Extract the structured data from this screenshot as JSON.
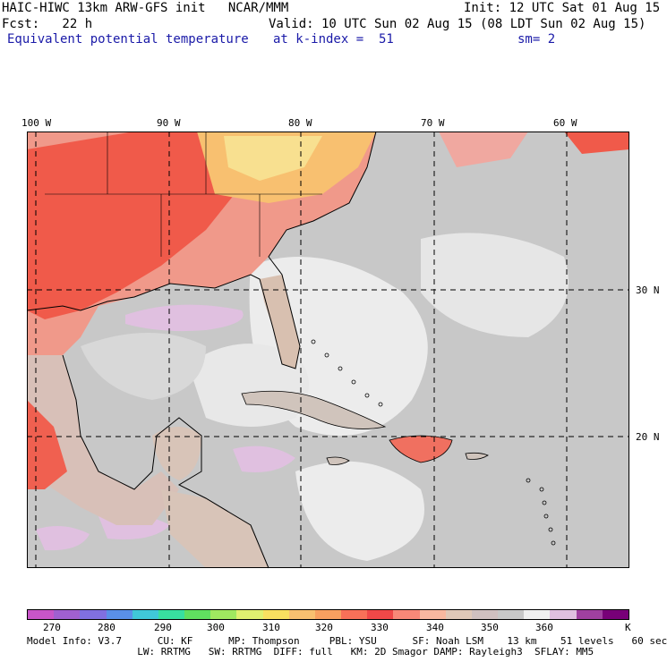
{
  "header": {
    "line1_left": "HAIC-HIWC 13km ARW-GFS init   NCAR/MMM",
    "line1_right": "Init: 12 UTC Sat 01 Aug 15",
    "line2_left": "Fcst:   22 h",
    "line2_right": "Valid: 10 UTC Sun 02 Aug 15 (08 LDT Sun 02 Aug 15)",
    "line3_field": "Equivalent potential temperature",
    "line3_index": "at k-index =  51",
    "line3_sm": "sm= 2"
  },
  "map": {
    "lon_labels": [
      "100 W",
      "90 W",
      "80 W",
      "70 W",
      "60 W"
    ],
    "lat_labels": [
      "30 N",
      "20 N"
    ]
  },
  "colorbar": {
    "unit": "K",
    "ticks": [
      "270",
      "280",
      "290",
      "300",
      "310",
      "320",
      "330",
      "340",
      "350",
      "360"
    ],
    "colors": [
      "#c855c8",
      "#a060d0",
      "#8070e0",
      "#5a90e8",
      "#40c8d8",
      "#38e0a0",
      "#60e060",
      "#a0e860",
      "#e0f070",
      "#f8e060",
      "#f8c070",
      "#f8a060",
      "#f87058",
      "#f04848",
      "#f88878",
      "#f8b8a0",
      "#e0c8b8",
      "#d0c0c0",
      "#c8c8c8",
      "#f0f0f0",
      "#e0c0e0",
      "#a040a0",
      "#780078"
    ]
  },
  "footer": {
    "line1": "Model Info: V3.7      CU: KF      MP: Thompson     PBL: YSU      SF: Noah LSM    13 km    51 levels   60 sec",
    "line2": "  LW: RRTMG   SW: RRTMG  DIFF: full   KM: 2D Smagor DAMP: Rayleigh3  SFLAY: MM5"
  }
}
